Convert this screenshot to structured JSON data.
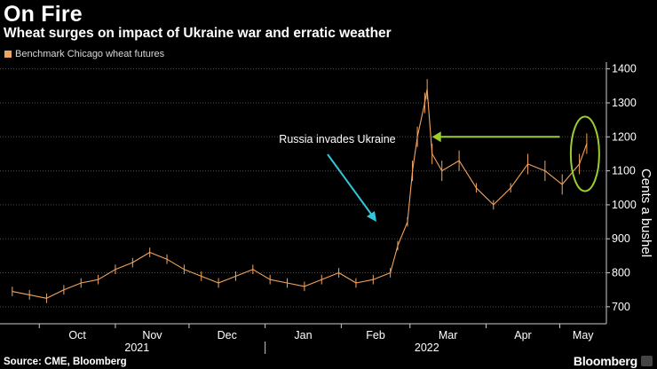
{
  "header": {
    "title": "On Fire",
    "subtitle": "Wheat surges on impact of Ukraine war and erratic weather"
  },
  "footer": {
    "source": "Source: CME, Bloomberg",
    "brand": "Bloomberg"
  },
  "colors": {
    "series": "#f2a35e",
    "annotation_arrow_cyan": "#33c6d9",
    "annotation_highlight_green": "#9ccc2e",
    "grid": "#4a4a4a"
  },
  "chart_data": {
    "type": "line",
    "legend": [
      "Benchmark Chicago wheat futures"
    ],
    "legend_position": "top-left",
    "ylabel": "Cents a bushel",
    "ylim": [
      650,
      1420
    ],
    "yticks": [
      700,
      800,
      900,
      1000,
      1100,
      1200,
      1300,
      1400
    ],
    "grid": true,
    "x_months": [
      {
        "label": "Oct",
        "year": "2021"
      },
      {
        "label": "Nov",
        "year": ""
      },
      {
        "label": "Dec",
        "year": ""
      },
      {
        "label": "Jan",
        "year": ""
      },
      {
        "label": "Feb",
        "year": ""
      },
      {
        "label": "Mar",
        "year": "2022"
      },
      {
        "label": "Apr",
        "year": ""
      },
      {
        "label": "May",
        "year": ""
      }
    ],
    "series": [
      {
        "name": "Benchmark Chicago wheat futures",
        "x": [
          "2021-09-20",
          "2021-09-27",
          "2021-10-04",
          "2021-10-11",
          "2021-10-18",
          "2021-10-25",
          "2021-11-01",
          "2021-11-08",
          "2021-11-15",
          "2021-11-22",
          "2021-11-29",
          "2021-12-06",
          "2021-12-13",
          "2021-12-20",
          "2021-12-27",
          "2022-01-03",
          "2022-01-10",
          "2022-01-17",
          "2022-01-24",
          "2022-01-31",
          "2022-02-07",
          "2022-02-14",
          "2022-02-21",
          "2022-02-24",
          "2022-02-28",
          "2022-03-02",
          "2022-03-04",
          "2022-03-07",
          "2022-03-08",
          "2022-03-10",
          "2022-03-14",
          "2022-03-21",
          "2022-03-28",
          "2022-04-04",
          "2022-04-11",
          "2022-04-18",
          "2022-04-25",
          "2022-05-02",
          "2022-05-09",
          "2022-05-12"
        ],
        "y": [
          745,
          735,
          725,
          750,
          770,
          780,
          810,
          830,
          860,
          840,
          810,
          790,
          770,
          790,
          810,
          780,
          770,
          760,
          780,
          800,
          770,
          780,
          800,
          880,
          950,
          1100,
          1200,
          1300,
          1340,
          1150,
          1100,
          1130,
          1050,
          1000,
          1050,
          1120,
          1100,
          1060,
          1120,
          1180
        ]
      }
    ],
    "annotations": [
      {
        "text": "Russia invades Ukraine",
        "date": "2022-02-24"
      },
      {
        "type": "arrow",
        "from_date": "2022-05-01",
        "to_date": "2022-03-10",
        "value": 1200
      },
      {
        "type": "ellipse",
        "date": "2022-05-12",
        "value": 1150
      }
    ]
  }
}
